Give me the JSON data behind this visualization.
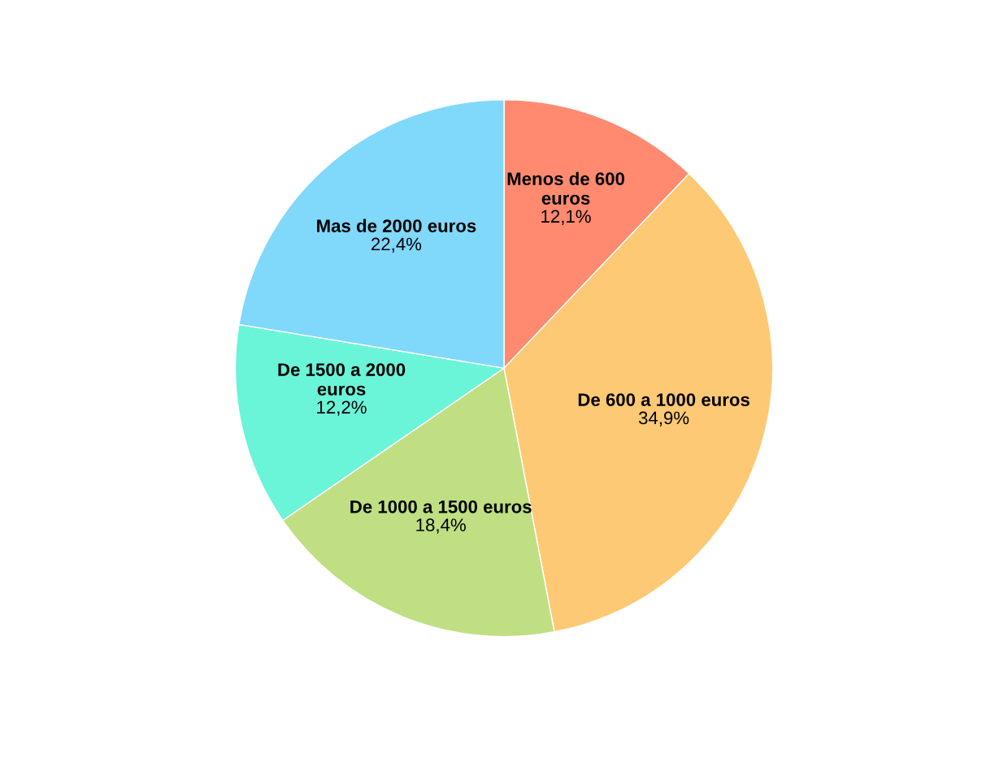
{
  "chart_data": {
    "type": "pie",
    "categories": [
      "Menos de 600 euros",
      "De 600 a 1000 euros",
      "De 1000 a 1500 euros",
      "De 1500 a 2000 euros",
      "Mas de 2000 euros"
    ],
    "values": [
      12.1,
      34.9,
      18.4,
      12.2,
      22.4
    ],
    "value_labels": [
      "12,1%",
      "34,9%",
      "18,4%",
      "12,2%",
      "22,4%"
    ],
    "colors": [
      "#ff8a70",
      "#fec974",
      "#bfdf82",
      "#6af5d9",
      "#80d8fb"
    ],
    "legend": false
  }
}
